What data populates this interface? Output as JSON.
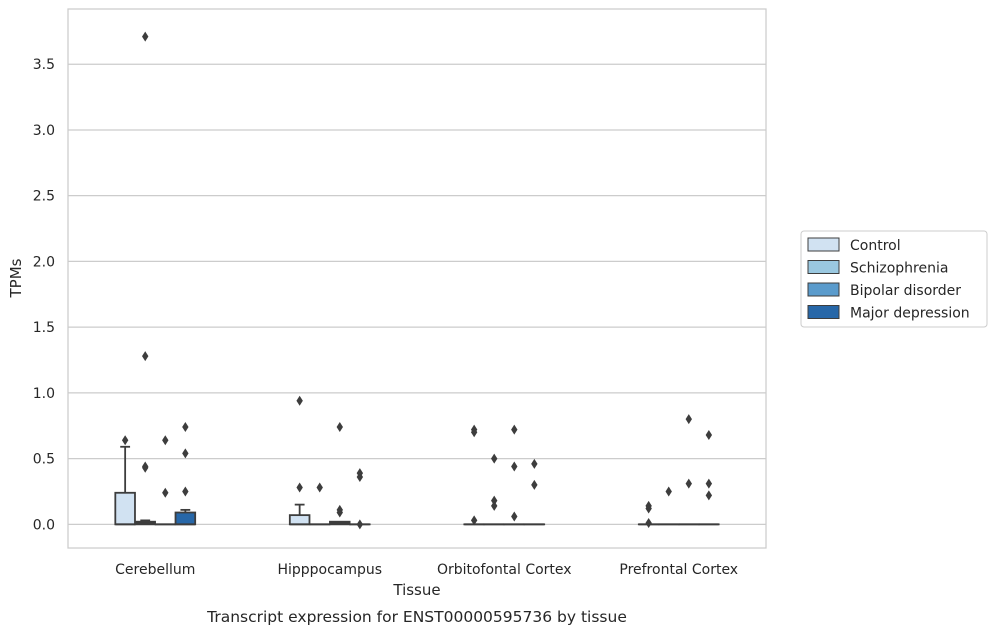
{
  "chart_data": {
    "type": "box",
    "caption": "Transcript expression for ENST00000595736 by tissue",
    "xlabel": "Tissue",
    "ylabel": "TPMs",
    "ylim": [
      -0.18,
      3.92
    ],
    "yticks": [
      0.0,
      0.5,
      1.0,
      1.5,
      2.0,
      2.5,
      3.0,
      3.5
    ],
    "ytick_labels": [
      "0.0",
      "0.5",
      "1.0",
      "1.5",
      "2.0",
      "2.5",
      "3.0",
      "3.5"
    ],
    "grid": "horizontal",
    "legend_position": "right",
    "categories": [
      "Cerebellum",
      "Hipppocampus",
      "Orbitofontal Cortex",
      "Prefrontal Cortex"
    ],
    "series": [
      {
        "name": "Control",
        "color": "#d1e2f2",
        "boxes": [
          {
            "q1": 0.0,
            "median": 0.0,
            "q3": 0.24,
            "whisker_low": 0.0,
            "whisker_high": 0.59,
            "outliers": [
              0.64
            ]
          },
          {
            "q1": 0.0,
            "median": 0.0,
            "q3": 0.07,
            "whisker_low": 0.0,
            "whisker_high": 0.15,
            "outliers": [
              0.28,
              0.94
            ]
          },
          {
            "q1": 0.0,
            "median": 0.0,
            "q3": 0.0,
            "whisker_low": 0.0,
            "whisker_high": 0.0,
            "outliers": [
              0.03,
              0.7,
              0.72
            ]
          },
          {
            "q1": 0.0,
            "median": 0.0,
            "q3": 0.0,
            "whisker_low": 0.0,
            "whisker_high": 0.0,
            "outliers": [
              0.01,
              0.12,
              0.14
            ]
          }
        ]
      },
      {
        "name": "Schizophrenia",
        "color": "#9ac8e0",
        "boxes": [
          {
            "q1": 0.0,
            "median": 0.01,
            "q3": 0.02,
            "whisker_low": 0.0,
            "whisker_high": 0.03,
            "outliers": [
              0.43,
              0.44,
              1.28,
              3.71
            ]
          },
          {
            "q1": 0.0,
            "median": 0.0,
            "q3": 0.0,
            "whisker_low": 0.0,
            "whisker_high": 0.0,
            "outliers": [
              0.28
            ]
          },
          {
            "q1": 0.0,
            "median": 0.0,
            "q3": 0.0,
            "whisker_low": 0.0,
            "whisker_high": 0.0,
            "outliers": [
              0.14,
              0.18,
              0.5
            ]
          },
          {
            "q1": 0.0,
            "median": 0.0,
            "q3": 0.0,
            "whisker_low": 0.0,
            "whisker_high": 0.0,
            "outliers": [
              0.25
            ]
          }
        ]
      },
      {
        "name": "Bipolar disorder",
        "color": "#5a9bcc",
        "boxes": [
          {
            "q1": 0.0,
            "median": 0.0,
            "q3": 0.0,
            "whisker_low": 0.0,
            "whisker_high": 0.0,
            "outliers": [
              0.24,
              0.64
            ]
          },
          {
            "q1": 0.0,
            "median": 0.01,
            "q3": 0.02,
            "whisker_low": 0.0,
            "whisker_high": 0.02,
            "outliers": [
              0.09,
              0.11,
              0.74
            ]
          },
          {
            "q1": 0.0,
            "median": 0.0,
            "q3": 0.0,
            "whisker_low": 0.0,
            "whisker_high": 0.0,
            "outliers": [
              0.06,
              0.44,
              0.72
            ]
          },
          {
            "q1": 0.0,
            "median": 0.0,
            "q3": 0.0,
            "whisker_low": 0.0,
            "whisker_high": 0.0,
            "outliers": [
              0.31,
              0.8
            ]
          }
        ]
      },
      {
        "name": "Major depression",
        "color": "#2767a8",
        "boxes": [
          {
            "q1": 0.0,
            "median": 0.0,
            "q3": 0.09,
            "whisker_low": 0.0,
            "whisker_high": 0.11,
            "outliers": [
              0.25,
              0.54,
              0.74
            ]
          },
          {
            "q1": 0.0,
            "median": 0.0,
            "q3": 0.0,
            "whisker_low": 0.0,
            "whisker_high": 0.0,
            "outliers": [
              0.0,
              0.36,
              0.39
            ]
          },
          {
            "q1": 0.0,
            "median": 0.0,
            "q3": 0.0,
            "whisker_low": 0.0,
            "whisker_high": 0.0,
            "outliers": [
              0.3,
              0.46
            ]
          },
          {
            "q1": 0.0,
            "median": 0.0,
            "q3": 0.0,
            "whisker_low": 0.0,
            "whisker_high": 0.0,
            "outliers": [
              0.22,
              0.31,
              0.68
            ]
          }
        ]
      }
    ]
  }
}
